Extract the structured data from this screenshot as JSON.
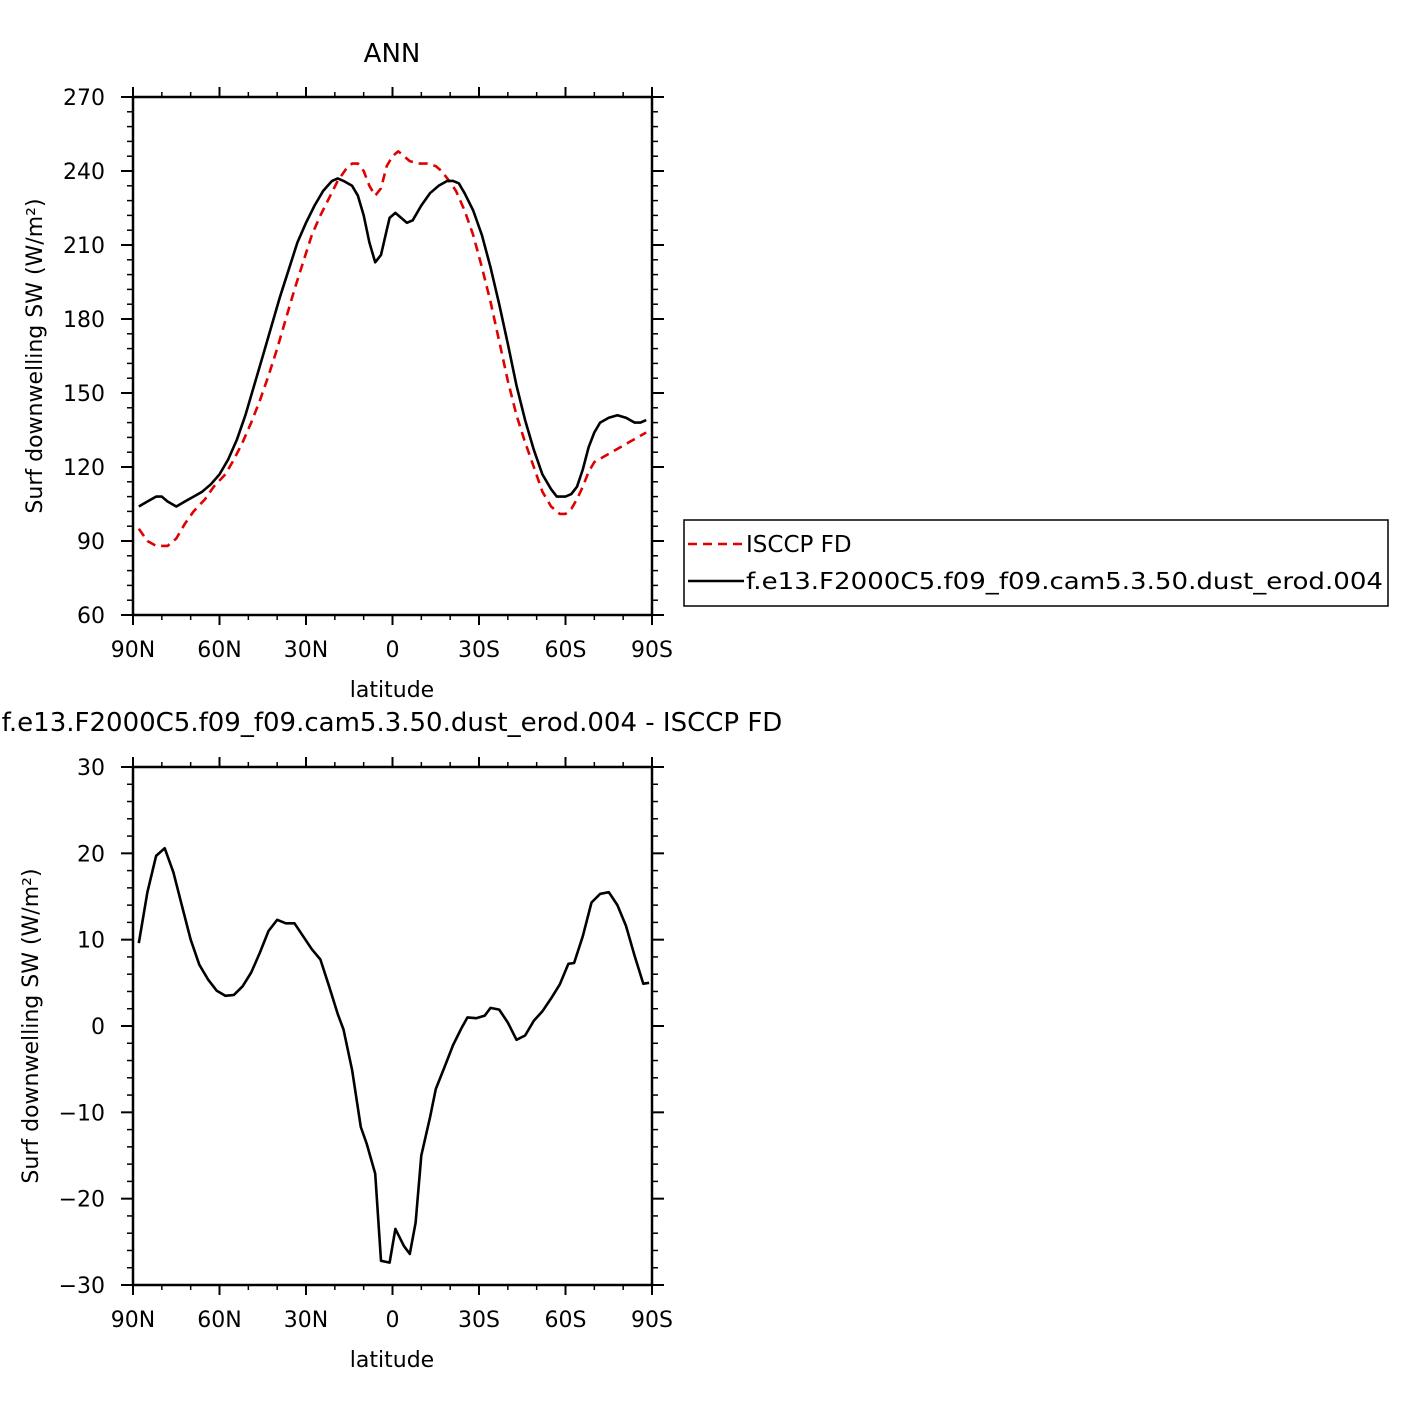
{
  "colors": {
    "obs": "#e00000",
    "model": "#000000"
  },
  "chart_data": [
    {
      "type": "line",
      "title": "ANN",
      "xlabel": "latitude",
      "ylabel": "Surf downwelling SW (W/m²)",
      "xlim": [
        90,
        -90
      ],
      "ylim": [
        60,
        270
      ],
      "xticks": [
        90,
        60,
        30,
        0,
        -30,
        -60,
        -90
      ],
      "xtick_labels": [
        "90N",
        "60N",
        "30N",
        "0",
        "30S",
        "60S",
        "90S"
      ],
      "yticks": [
        60,
        90,
        120,
        150,
        180,
        210,
        240,
        270
      ],
      "ytick_labels": [
        "60",
        "90",
        "120",
        "150",
        "180",
        "210",
        "240",
        "270"
      ],
      "legend": "right",
      "grid": false,
      "series": [
        {
          "name": "ISCCP FD",
          "style": "dashed",
          "color": "#e00000",
          "points": [
            [
              88,
              95
            ],
            [
              85,
              90
            ],
            [
              82,
              88
            ],
            [
              78,
              88
            ],
            [
              75,
              91
            ],
            [
              72,
              97
            ],
            [
              69,
              102
            ],
            [
              65,
              107
            ],
            [
              62,
              112
            ],
            [
              58,
              117
            ],
            [
              55,
              123
            ],
            [
              52,
              130
            ],
            [
              49,
              138
            ],
            [
              46,
              147
            ],
            [
              43,
              157
            ],
            [
              40,
              168
            ],
            [
              37,
              180
            ],
            [
              34,
              192
            ],
            [
              31,
              203
            ],
            [
              28,
              214
            ],
            [
              25,
              222
            ],
            [
              22,
              229
            ],
            [
              19,
              236
            ],
            [
              16,
              241
            ],
            [
              14,
              243
            ],
            [
              12,
              243
            ],
            [
              10,
              240
            ],
            [
              8,
              234
            ],
            [
              6,
              230
            ],
            [
              4,
              233
            ],
            [
              2,
              242
            ],
            [
              0,
              246
            ],
            [
              -2,
              248
            ],
            [
              -4,
              246
            ],
            [
              -6,
              244
            ],
            [
              -9,
              243
            ],
            [
              -12,
              243
            ],
            [
              -15,
              242
            ],
            [
              -17,
              240
            ],
            [
              -19,
              237
            ],
            [
              -22,
              232
            ],
            [
              -25,
              224
            ],
            [
              -28,
              214
            ],
            [
              -31,
              201
            ],
            [
              -34,
              187
            ],
            [
              -37,
              171
            ],
            [
              -40,
              155
            ],
            [
              -43,
              141
            ],
            [
              -46,
              130
            ],
            [
              -49,
              120
            ],
            [
              -52,
              110
            ],
            [
              -55,
              104
            ],
            [
              -58,
              101
            ],
            [
              -60,
              101
            ],
            [
              -62,
              103
            ],
            [
              -64,
              107
            ],
            [
              -66,
              112
            ],
            [
              -68,
              118
            ],
            [
              -70,
              122
            ],
            [
              -73,
              124
            ],
            [
              -76,
              126
            ],
            [
              -79,
              128
            ],
            [
              -82,
              130
            ],
            [
              -85,
              132
            ],
            [
              -88,
              134
            ]
          ]
        },
        {
          "name": "f.e13.F2000C5.f09_f09.cam5.3.50.dust_erod.004",
          "style": "solid",
          "color": "#000000",
          "points": [
            [
              88,
              104
            ],
            [
              85,
              106
            ],
            [
              82,
              108
            ],
            [
              80,
              108
            ],
            [
              78,
              106
            ],
            [
              75,
              104
            ],
            [
              72,
              106
            ],
            [
              69,
              108
            ],
            [
              66,
              110
            ],
            [
              63,
              113
            ],
            [
              60,
              117
            ],
            [
              57,
              123
            ],
            [
              54,
              131
            ],
            [
              51,
              141
            ],
            [
              48,
              153
            ],
            [
              45,
              165
            ],
            [
              42,
              177
            ],
            [
              39,
              189
            ],
            [
              36,
              200
            ],
            [
              33,
              211
            ],
            [
              30,
              219
            ],
            [
              27,
              226
            ],
            [
              24,
              232
            ],
            [
              21,
              236
            ],
            [
              19,
              237
            ],
            [
              17,
              236
            ],
            [
              14,
              234
            ],
            [
              12,
              230
            ],
            [
              10,
              222
            ],
            [
              8,
              211
            ],
            [
              6,
              203
            ],
            [
              4,
              206
            ],
            [
              2,
              216
            ],
            [
              1,
              221
            ],
            [
              -1,
              223
            ],
            [
              -3,
              221
            ],
            [
              -5,
              219
            ],
            [
              -7,
              220
            ],
            [
              -10,
              226
            ],
            [
              -13,
              231
            ],
            [
              -16,
              234
            ],
            [
              -19,
              236
            ],
            [
              -21,
              236
            ],
            [
              -23,
              235
            ],
            [
              -25,
              231
            ],
            [
              -28,
              224
            ],
            [
              -31,
              214
            ],
            [
              -34,
              201
            ],
            [
              -37,
              186
            ],
            [
              -40,
              170
            ],
            [
              -43,
              153
            ],
            [
              -46,
              139
            ],
            [
              -49,
              127
            ],
            [
              -52,
              117
            ],
            [
              -55,
              111
            ],
            [
              -57,
              108
            ],
            [
              -60,
              108
            ],
            [
              -62,
              109
            ],
            [
              -64,
              112
            ],
            [
              -66,
              119
            ],
            [
              -68,
              128
            ],
            [
              -70,
              134
            ],
            [
              -72,
              138
            ],
            [
              -75,
              140
            ],
            [
              -78,
              141
            ],
            [
              -81,
              140
            ],
            [
              -84,
              138
            ],
            [
              -86,
              138
            ],
            [
              -88,
              139
            ]
          ]
        }
      ]
    },
    {
      "type": "line",
      "title": "f.e13.F2000C5.f09_f09.cam5.3.50.dust_erod.004 - ISCCP FD",
      "xlabel": "latitude",
      "ylabel": "Surf downwelling SW (W/m²)",
      "xlim": [
        90,
        -90
      ],
      "ylim": [
        -30,
        30
      ],
      "xticks": [
        90,
        60,
        30,
        0,
        -30,
        -60,
        -90
      ],
      "xtick_labels": [
        "90N",
        "60N",
        "30N",
        "0",
        "30S",
        "60S",
        "90S"
      ],
      "yticks": [
        -30,
        -20,
        -10,
        0,
        10,
        20,
        30
      ],
      "ytick_labels": [
        "−30",
        "−20",
        "−10",
        "0",
        "10",
        "20",
        "30"
      ],
      "grid": false,
      "series": [
        {
          "style": "solid",
          "color": "#000000",
          "points": [
            [
              88,
              9.6
            ],
            [
              85,
              15.5
            ],
            [
              82,
              19.7
            ],
            [
              79,
              20.6
            ],
            [
              76,
              17.8
            ],
            [
              73,
              13.9
            ],
            [
              70,
              10.0
            ],
            [
              67,
              7.1
            ],
            [
              64,
              5.4
            ],
            [
              61,
              4.1
            ],
            [
              58,
              3.5
            ],
            [
              55,
              3.6
            ],
            [
              52,
              4.6
            ],
            [
              49,
              6.2
            ],
            [
              46,
              8.5
            ],
            [
              43,
              11.0
            ],
            [
              40,
              12.3
            ],
            [
              37,
              11.9
            ],
            [
              34,
              11.9
            ],
            [
              31,
              10.4
            ],
            [
              28,
              8.9
            ],
            [
              25,
              7.7
            ],
            [
              22,
              4.6
            ],
            [
              19,
              1.4
            ],
            [
              17,
              -0.4
            ],
            [
              14,
              -5.1
            ],
            [
              11,
              -11.7
            ],
            [
              9,
              -13.6
            ],
            [
              6,
              -17.1
            ],
            [
              4,
              -27.2
            ],
            [
              1,
              -27.4
            ],
            [
              -1,
              -23.5
            ],
            [
              -4,
              -25.5
            ],
            [
              -6,
              -26.4
            ],
            [
              -8,
              -22.8
            ],
            [
              -10,
              -15.0
            ],
            [
              -13,
              -10.6
            ],
            [
              -15,
              -7.3
            ],
            [
              -18,
              -4.8
            ],
            [
              -21,
              -2.2
            ],
            [
              -24,
              -0.2
            ],
            [
              -26,
              1.0
            ],
            [
              -29,
              0.9
            ],
            [
              -32,
              1.2
            ],
            [
              -34,
              2.1
            ],
            [
              -37,
              1.9
            ],
            [
              -40,
              0.4
            ],
            [
              -43,
              -1.6
            ],
            [
              -46,
              -1.1
            ],
            [
              -49,
              0.6
            ],
            [
              -52,
              1.7
            ],
            [
              -55,
              3.2
            ],
            [
              -58,
              4.8
            ],
            [
              -61,
              7.2
            ],
            [
              -63,
              7.3
            ],
            [
              -66,
              10.4
            ],
            [
              -69,
              14.3
            ],
            [
              -72,
              15.3
            ],
            [
              -75,
              15.5
            ],
            [
              -78,
              14.0
            ],
            [
              -81,
              11.6
            ],
            [
              -84,
              8.1
            ],
            [
              -87,
              4.9
            ],
            [
              -89,
              5.0
            ]
          ]
        }
      ]
    }
  ]
}
